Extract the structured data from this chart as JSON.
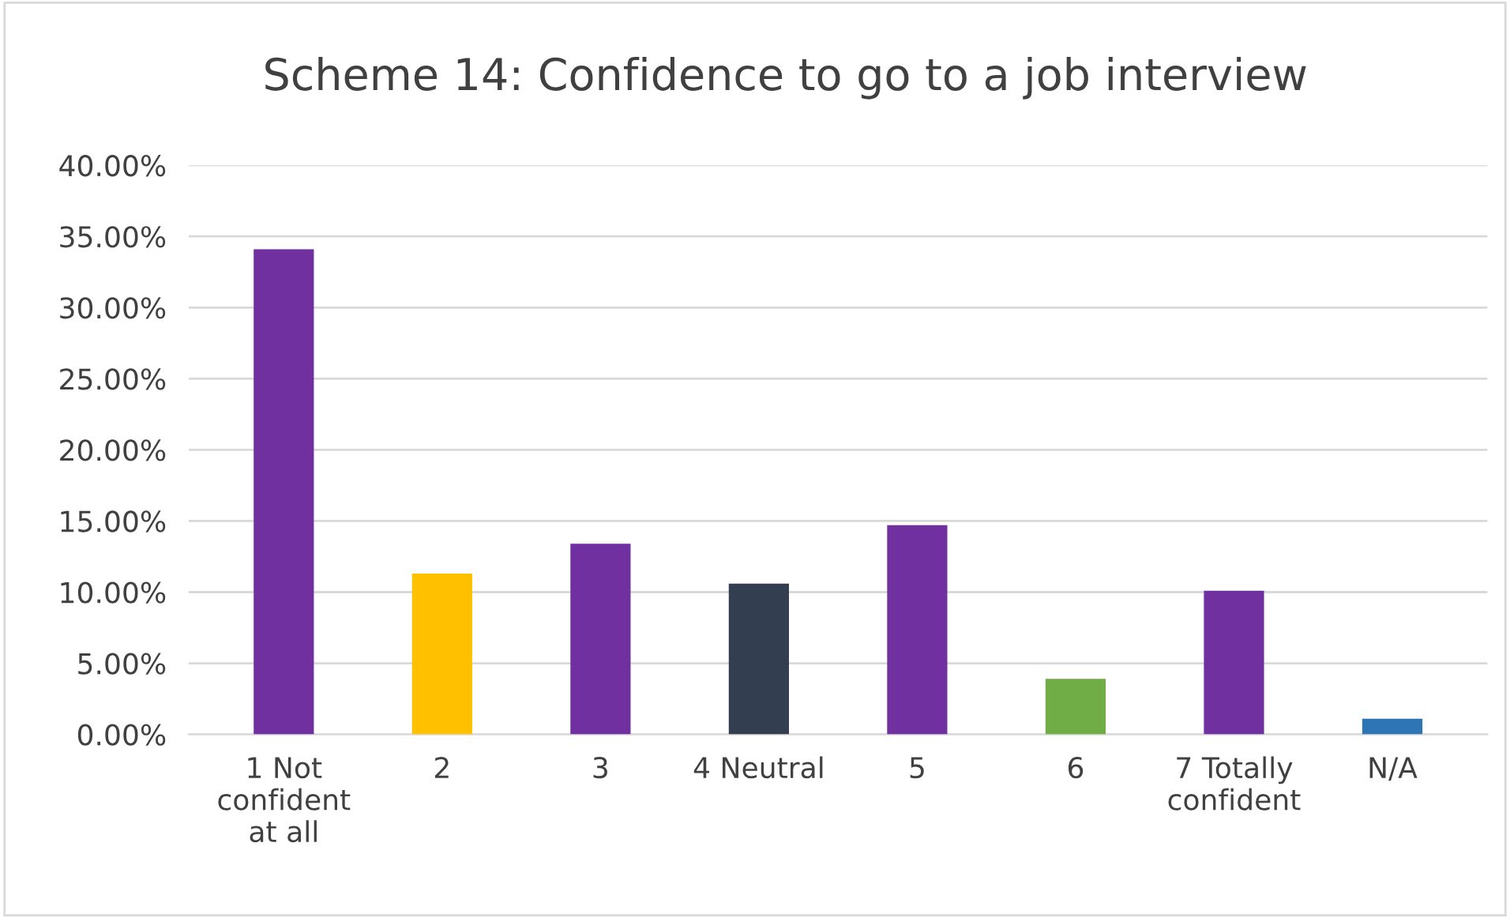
{
  "chart_data": {
    "type": "bar",
    "title": "Scheme 14: Confidence to go to a job interview",
    "categories": [
      "1 Not confident at all",
      "2",
      "3",
      "4 Neutral",
      "5",
      "6",
      "7 Totally confident",
      "N/A"
    ],
    "values": [
      34.1,
      11.3,
      13.4,
      10.6,
      14.7,
      3.9,
      10.1,
      1.1
    ],
    "colors": [
      "#7030a0",
      "#ffc000",
      "#7030a0",
      "#333f50",
      "#7030a0",
      "#70ad47",
      "#7030a0",
      "#2e75b6"
    ],
    "ylim": [
      0,
      40
    ],
    "yticks": [
      {
        "value": 0,
        "label": "0.00%"
      },
      {
        "value": 5,
        "label": "5.00%"
      },
      {
        "value": 10,
        "label": "10.00%"
      },
      {
        "value": 15,
        "label": "15.00%"
      },
      {
        "value": 20,
        "label": "20.00%"
      },
      {
        "value": 25,
        "label": "25.00%"
      },
      {
        "value": 30,
        "label": "30.00%"
      },
      {
        "value": 35,
        "label": "35.00%"
      },
      {
        "value": 40,
        "label": "40.00%"
      }
    ],
    "grid": "y",
    "legend": false
  }
}
